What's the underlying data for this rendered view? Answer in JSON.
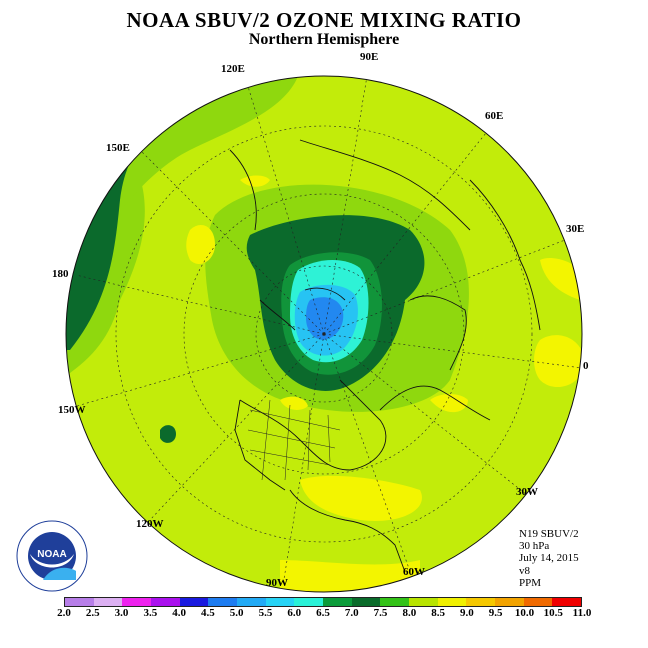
{
  "title": "NOAA SBUV/2 OZONE MIXING RATIO",
  "subtitle": "Northern Hemisphere",
  "longitude_labels": {
    "e90": "90E",
    "e120": "120E",
    "e150": "150E",
    "e180": "180",
    "w150": "150W",
    "w120": "120W",
    "w90": "90W",
    "w60": "60W",
    "w30": "30W",
    "zero": "0",
    "e30": "30E",
    "e60": "60E"
  },
  "info": {
    "instrument": "N19 SBUV/2",
    "level": "30 hPa",
    "date": "July 14, 2015",
    "version": "v8",
    "units": "PPM"
  },
  "logo": {
    "text": "NOAA",
    "ring_text": "NATIONAL OCEANIC AND ATMOSPHERIC ADMINISTRATION · U.S. DEPARTMENT OF COMMERCE"
  },
  "colorbar": {
    "ticks": [
      "2.0",
      "2.5",
      "3.0",
      "3.5",
      "4.0",
      "4.5",
      "5.0",
      "5.5",
      "6.0",
      "6.5",
      "7.0",
      "7.5",
      "8.0",
      "8.5",
      "9.0",
      "9.5",
      "10.0",
      "10.5",
      "11.0"
    ],
    "colors": [
      "#b77ee8",
      "#dcb0f2",
      "#ee22ee",
      "#aa11ee",
      "#1a1adf",
      "#1e7cf0",
      "#22aaf5",
      "#27d3f5",
      "#2af2d8",
      "#0b9c3a",
      "#0a6b2a",
      "#33c217",
      "#b8e400",
      "#f0f000",
      "#f5c800",
      "#f2a300",
      "#f06a00",
      "#f00000",
      "#8a5033"
    ]
  },
  "map_colors": {
    "base": "#c2ec0a",
    "green": "#8fd80e",
    "dark_green": "#0b6a2c",
    "mid_green": "#11943a",
    "yellow": "#f3f500",
    "cyan": "#2ef2d6",
    "light_blue": "#27c3f3",
    "blue": "#2288f0"
  }
}
